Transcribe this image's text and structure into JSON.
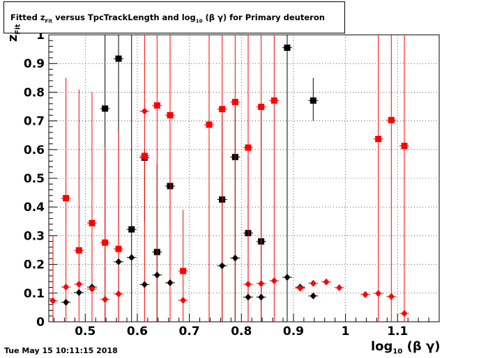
{
  "title": {
    "pre": "Fitted  z",
    "sub": "Fit",
    "mid": "  versus TpcTrackLength and log",
    "sub2": "10",
    "post": " (β γ) for Primary deuteron"
  },
  "timestamp": "Tue May 15 10:11:15 2018",
  "axes": {
    "xlabel_main": "log",
    "xlabel_sub": "10",
    "xlabel_tail": "(β γ)",
    "ylabel_main": "z",
    "ylabel_sub": "Fit"
  },
  "chart_data": {
    "type": "scatter",
    "xlim": [
      0.43,
      1.18
    ],
    "ylim": [
      0,
      1
    ],
    "x_ticks": [
      "0.5",
      "0.6",
      "0.7",
      "0.8",
      "0.9",
      "1",
      "1.1"
    ],
    "y_ticks": [
      "0",
      "0.1",
      "0.2",
      "0.3",
      "0.4",
      "0.5",
      "0.6",
      "0.7",
      "0.8",
      "0.9",
      "1"
    ],
    "x_tick_values": [
      0.5,
      0.6,
      0.7,
      0.8,
      0.9,
      1.0,
      1.1
    ],
    "y_tick_values": [
      0,
      0.1,
      0.2,
      0.3,
      0.4,
      0.5,
      0.6,
      0.7,
      0.8,
      0.9,
      1.0
    ],
    "grid": true,
    "series": [
      {
        "marker": "square",
        "color": "#000000",
        "points": [
          {
            "x": 0.538,
            "y": 0.743,
            "lo": 0.0,
            "hi": 1.0
          },
          {
            "x": 0.564,
            "y": 0.917,
            "lo": 0.0,
            "hi": 1.0
          },
          {
            "x": 0.589,
            "y": 0.322,
            "lo": 0.0,
            "hi": 1.0
          },
          {
            "x": 0.614,
            "y": 0.572,
            "lo": 0.35,
            "hi": 0.6
          },
          {
            "x": 0.638,
            "y": 0.243,
            "lo": 0.0,
            "hi": 0.55
          },
          {
            "x": 0.663,
            "y": 0.473,
            "lo": 0.33,
            "hi": 0.6
          },
          {
            "x": 0.763,
            "y": 0.426,
            "lo": 0.0,
            "hi": 0.72
          },
          {
            "x": 0.788,
            "y": 0.574,
            "lo": 0.0,
            "hi": 0.77
          },
          {
            "x": 0.813,
            "y": 0.309,
            "lo": 0.0,
            "hi": 0.6
          },
          {
            "x": 0.838,
            "y": 0.28,
            "lo": 0.0,
            "hi": 0.75
          },
          {
            "x": 0.888,
            "y": 0.955,
            "lo": 0.0,
            "hi": 1.0
          },
          {
            "x": 0.938,
            "y": 0.771,
            "lo": 0.7,
            "hi": 0.85
          }
        ]
      },
      {
        "marker": "square",
        "color": "#ff0000",
        "points": [
          {
            "x": 0.463,
            "y": 0.431,
            "lo": 0.0,
            "hi": 0.85
          },
          {
            "x": 0.488,
            "y": 0.249,
            "lo": 0.0,
            "hi": 0.81
          },
          {
            "x": 0.513,
            "y": 0.344,
            "lo": 0.0,
            "hi": 0.8
          },
          {
            "x": 0.538,
            "y": 0.276,
            "lo": 0.0,
            "hi": 0.61
          },
          {
            "x": 0.564,
            "y": 0.254,
            "lo": 0.0,
            "hi": 0.66
          },
          {
            "x": 0.614,
            "y": 0.578,
            "lo": 0.0,
            "hi": 1.0
          },
          {
            "x": 0.638,
            "y": 0.754,
            "lo": 0.0,
            "hi": 1.0
          },
          {
            "x": 0.663,
            "y": 0.72,
            "lo": 0.0,
            "hi": 1.0
          },
          {
            "x": 0.688,
            "y": 0.177,
            "lo": 0.0,
            "hi": 0.39
          },
          {
            "x": 0.738,
            "y": 0.687,
            "lo": 0.0,
            "hi": 1.0
          },
          {
            "x": 0.763,
            "y": 0.741,
            "lo": 0.0,
            "hi": 1.0
          },
          {
            "x": 0.788,
            "y": 0.766,
            "lo": 0.0,
            "hi": 1.0
          },
          {
            "x": 0.813,
            "y": 0.607,
            "lo": 0.0,
            "hi": 1.0
          },
          {
            "x": 0.838,
            "y": 0.749,
            "lo": 0.0,
            "hi": 1.0
          },
          {
            "x": 0.863,
            "y": 0.771,
            "lo": 0.0,
            "hi": 1.0
          },
          {
            "x": 1.063,
            "y": 0.637,
            "lo": 0.0,
            "hi": 1.0
          },
          {
            "x": 1.088,
            "y": 0.703,
            "lo": 0.0,
            "hi": 1.0
          },
          {
            "x": 1.113,
            "y": 0.613,
            "lo": 0.0,
            "hi": 1.0
          }
        ]
      },
      {
        "marker": "diamond",
        "color": "#000000",
        "points": [
          {
            "x": 0.463,
            "y": 0.068
          },
          {
            "x": 0.488,
            "y": 0.102
          },
          {
            "x": 0.513,
            "y": 0.121
          },
          {
            "x": 0.564,
            "y": 0.209
          },
          {
            "x": 0.589,
            "y": 0.224
          },
          {
            "x": 0.614,
            "y": 0.13
          },
          {
            "x": 0.638,
            "y": 0.163
          },
          {
            "x": 0.663,
            "y": 0.136
          },
          {
            "x": 0.763,
            "y": 0.195
          },
          {
            "x": 0.788,
            "y": 0.222
          },
          {
            "x": 0.813,
            "y": 0.086
          },
          {
            "x": 0.838,
            "y": 0.086
          },
          {
            "x": 0.888,
            "y": 0.155
          },
          {
            "x": 0.913,
            "y": 0.121
          },
          {
            "x": 0.938,
            "y": 0.09
          }
        ]
      },
      {
        "marker": "diamond",
        "color": "#ff0000",
        "points": [
          {
            "x": 0.438,
            "y": 0.073,
            "lo": 0.0,
            "hi": 0.3
          },
          {
            "x": 0.463,
            "y": 0.121
          },
          {
            "x": 0.488,
            "y": 0.131
          },
          {
            "x": 0.513,
            "y": 0.114
          },
          {
            "x": 0.538,
            "y": 0.078
          },
          {
            "x": 0.564,
            "y": 0.097
          },
          {
            "x": 0.614,
            "y": 0.734
          },
          {
            "x": 0.688,
            "y": 0.075
          },
          {
            "x": 0.813,
            "y": 0.131
          },
          {
            "x": 0.838,
            "y": 0.133
          },
          {
            "x": 0.863,
            "y": 0.143
          },
          {
            "x": 0.913,
            "y": 0.117
          },
          {
            "x": 0.938,
            "y": 0.134
          },
          {
            "x": 0.963,
            "y": 0.139
          },
          {
            "x": 0.988,
            "y": 0.119
          },
          {
            "x": 1.038,
            "y": 0.095
          },
          {
            "x": 1.063,
            "y": 0.099
          },
          {
            "x": 1.088,
            "y": 0.088
          },
          {
            "x": 1.113,
            "y": 0.029
          }
        ]
      }
    ]
  }
}
